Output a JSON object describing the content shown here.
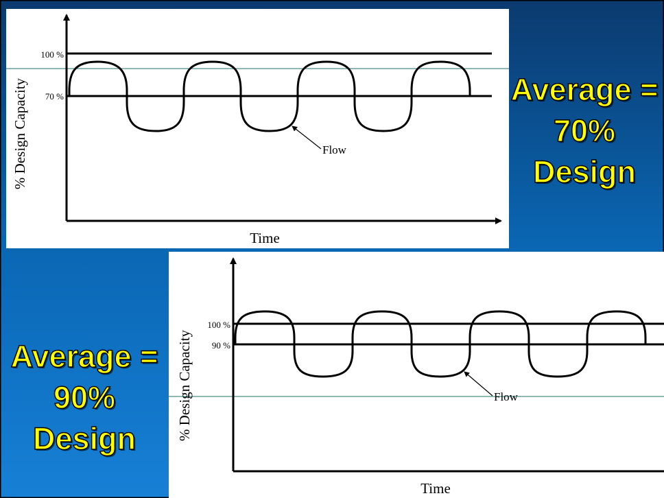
{
  "colors": {
    "background_dark": "#0b3a6e",
    "background_mid": "#0a67b4",
    "background_light": "#1780d6",
    "panel": "#ffffff",
    "caption_text": "#ffff00",
    "caption_outline": "#000000",
    "guide_line": "#1f6f6a"
  },
  "top": {
    "caption": {
      "line1": "Average =",
      "line2": "70%",
      "line3": "Design"
    },
    "chart": {
      "y_label": "% Design Capacity",
      "x_label": "Time",
      "upper_tick": "100 %",
      "lower_tick": "70 %",
      "flow_label": "Flow"
    }
  },
  "bottom": {
    "caption": {
      "line1": "Average =",
      "line2": "90%",
      "line3": "Design"
    },
    "chart": {
      "y_label": "% Design Capacity",
      "x_label": "Time",
      "upper_tick": "100 %",
      "lower_tick": "90 %",
      "flow_label": "Flow"
    }
  }
}
